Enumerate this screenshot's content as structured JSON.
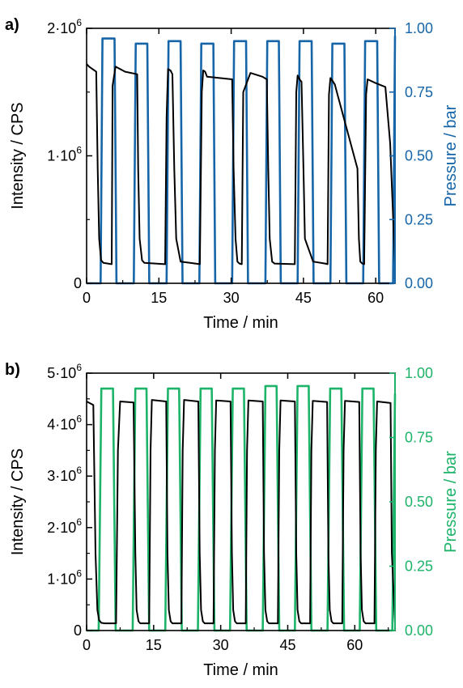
{
  "colors": {
    "intensity": "#000000",
    "pressure_a": "#1565a8",
    "pressure_b": "#1db46a",
    "axis": "#000000"
  },
  "chart_data": [
    {
      "panel_label": "a)",
      "type": "line",
      "xlabel": "Time / min",
      "ylabel_left": "Intensity / CPS",
      "ylabel_right": "Pressure / bar",
      "xlim": [
        0,
        64
      ],
      "ylim_left": [
        0,
        2000000
      ],
      "ylim_right": [
        0,
        1.0
      ],
      "x_ticks": [
        0,
        15,
        30,
        45,
        60
      ],
      "x_tick_labels": [
        "0",
        "15",
        "30",
        "45",
        "60"
      ],
      "y_left_ticks": [
        0,
        1000000,
        2000000
      ],
      "y_left_tick_labels": [
        {
          "base": "0",
          "exp": ""
        },
        {
          "base": "1·10",
          "exp": "6"
        },
        {
          "base": "2·10",
          "exp": "6"
        }
      ],
      "y_right_ticks": [
        0,
        0.25,
        0.5,
        0.75,
        1.0
      ],
      "y_right_tick_labels": [
        "0.00",
        "0.25",
        "0.50",
        "0.75",
        "1.00"
      ],
      "grid": false,
      "series": [
        {
          "axis": "left",
          "x": [
            0,
            0.5,
            2.0,
            2.3,
            2.6,
            3.0,
            3.5,
            5.2,
            5.4,
            6.0,
            8.0,
            10.5,
            10.7,
            11.0,
            11.5,
            12.0,
            16.3,
            16.6,
            16.9,
            17.4,
            17.8,
            18.2,
            18.6,
            19.5,
            21.5,
            23.5,
            23.9,
            24.2,
            24.6,
            25.0,
            30.2,
            30.5,
            30.9,
            31.3,
            31.7,
            32.2,
            32.5,
            34.0,
            36.5,
            37.4,
            37.7,
            38.0,
            38.5,
            39.0,
            43.2,
            43.5,
            43.8,
            44.2,
            44.6,
            45.0,
            45.3,
            47.0,
            49.5,
            50.0,
            50.3,
            50.6,
            51.0,
            51.5,
            56.2,
            56.5,
            56.8,
            57.2,
            57.6,
            58.0,
            58.3,
            60.0,
            62.0,
            63.0,
            64.0
          ],
          "values": [
            1720000,
            1700000,
            1660000,
            900000,
            350000,
            180000,
            160000,
            150000,
            1550000,
            1700000,
            1660000,
            1640000,
            900000,
            350000,
            180000,
            160000,
            150000,
            1300000,
            1680000,
            1670000,
            1640000,
            900000,
            350000,
            170000,
            160000,
            150000,
            1500000,
            1670000,
            1660000,
            1620000,
            1600000,
            900000,
            350000,
            170000,
            155000,
            150000,
            1500000,
            1650000,
            1620000,
            1600000,
            900000,
            350000,
            170000,
            155000,
            150000,
            1500000,
            1630000,
            1600000,
            1580000,
            900000,
            350000,
            170000,
            155000,
            150000,
            1480000,
            1610000,
            1590000,
            1560000,
            900000,
            350000,
            170000,
            155000,
            150000,
            1480000,
            1600000,
            1570000,
            1540000,
            1100000,
            145000
          ]
        },
        {
          "axis": "right",
          "x": [
            0,
            2.9,
            3.3,
            5.8,
            6.2,
            9.8,
            10.2,
            12.6,
            13.0,
            16.6,
            17.0,
            19.5,
            19.9,
            23.4,
            23.8,
            26.3,
            26.7,
            30.2,
            30.6,
            33.1,
            33.5,
            37.1,
            37.5,
            39.9,
            40.3,
            43.8,
            44.2,
            46.7,
            47.1,
            50.6,
            51.0,
            53.5,
            53.9,
            57.4,
            57.8,
            60.3,
            60.7,
            63.6,
            64.0
          ],
          "values": [
            0,
            0,
            0.96,
            0.96,
            0,
            0,
            0.94,
            0.94,
            0,
            0,
            0.95,
            0.95,
            0,
            0,
            0.94,
            0.94,
            0,
            0,
            0.95,
            0.95,
            0,
            0,
            0.95,
            0.95,
            0,
            0,
            0.95,
            0.95,
            0,
            0,
            0.94,
            0.94,
            0,
            0,
            0.95,
            0.95,
            0,
            0,
            0.97
          ]
        }
      ]
    },
    {
      "panel_label": "b)",
      "type": "line",
      "xlabel": "Time / min",
      "ylabel_left": "Intensity / CPS",
      "ylabel_right": "Pressure / bar",
      "xlim": [
        0,
        69
      ],
      "ylim_left": [
        0,
        5000000
      ],
      "ylim_right": [
        0,
        1.0
      ],
      "x_ticks": [
        0,
        15,
        30,
        45,
        60
      ],
      "x_tick_labels": [
        "0",
        "15",
        "30",
        "45",
        "60"
      ],
      "y_left_ticks": [
        0,
        1000000,
        2000000,
        3000000,
        4000000,
        5000000
      ],
      "y_left_tick_labels": [
        {
          "base": "0",
          "exp": ""
        },
        {
          "base": "1·10",
          "exp": "6"
        },
        {
          "base": "2·10",
          "exp": "6"
        },
        {
          "base": "3·10",
          "exp": "6"
        },
        {
          "base": "4·10",
          "exp": "6"
        },
        {
          "base": "5·10",
          "exp": "6"
        }
      ],
      "y_right_ticks": [
        0,
        0.25,
        0.5,
        0.75,
        1.0
      ],
      "y_right_tick_labels": [
        "0.00",
        "0.25",
        "0.50",
        "0.75",
        "1.00"
      ],
      "grid": false,
      "series": [
        {
          "axis": "left",
          "x": [
            0,
            1.5,
            2.0,
            2.4,
            2.8,
            3.3,
            4.0,
            6.6,
            7.0,
            7.5,
            10.5,
            10.9,
            11.2,
            11.6,
            12.0,
            14.0,
            14.3,
            14.6,
            17.8,
            18.1,
            18.4,
            18.8,
            19.2,
            21.2,
            21.5,
            21.8,
            25.0,
            25.3,
            25.6,
            26.0,
            26.4,
            28.4,
            28.7,
            29.0,
            32.2,
            32.5,
            32.8,
            33.2,
            33.6,
            35.6,
            35.9,
            36.2,
            39.4,
            39.7,
            40.0,
            40.4,
            40.8,
            42.8,
            43.1,
            43.4,
            46.6,
            46.9,
            47.2,
            47.6,
            48.0,
            50.0,
            50.3,
            50.6,
            53.8,
            54.1,
            54.4,
            54.8,
            55.2,
            57.2,
            57.5,
            57.8,
            61.0,
            61.3,
            61.6,
            62.0,
            62.4,
            64.4,
            64.7,
            65.0,
            68.0,
            68.3,
            69.0
          ],
          "values": [
            4450000,
            4380000,
            1500000,
            400000,
            200000,
            150000,
            140000,
            140000,
            3500000,
            4450000,
            4430000,
            1500000,
            400000,
            180000,
            140000,
            140000,
            3500000,
            4480000,
            4450000,
            1500000,
            400000,
            180000,
            140000,
            140000,
            3500000,
            4480000,
            4450000,
            1500000,
            400000,
            180000,
            140000,
            140000,
            3500000,
            4470000,
            4450000,
            1500000,
            400000,
            180000,
            140000,
            140000,
            3500000,
            4470000,
            4450000,
            1500000,
            400000,
            180000,
            140000,
            140000,
            3500000,
            4470000,
            4450000,
            1500000,
            400000,
            180000,
            140000,
            140000,
            3500000,
            4460000,
            4440000,
            1500000,
            400000,
            180000,
            140000,
            140000,
            3500000,
            4460000,
            4440000,
            1500000,
            400000,
            180000,
            140000,
            140000,
            3500000,
            4450000,
            4420000,
            1500000,
            140000
          ]
        },
        {
          "axis": "right",
          "x": [
            0,
            2.7,
            3.3,
            5.9,
            6.5,
            10.3,
            10.9,
            13.4,
            14.0,
            17.6,
            18.2,
            20.7,
            21.3,
            24.9,
            25.5,
            28.0,
            28.6,
            32.1,
            32.7,
            35.2,
            35.8,
            39.4,
            40.0,
            42.5,
            43.1,
            46.6,
            47.2,
            49.7,
            50.3,
            53.9,
            54.5,
            57.0,
            57.6,
            61.1,
            61.7,
            64.2,
            64.8,
            68.4,
            69.0
          ],
          "values": [
            0,
            0,
            0.94,
            0.94,
            0,
            0,
            0.94,
            0.94,
            0,
            0,
            0.94,
            0.94,
            0,
            0,
            0.94,
            0.94,
            0,
            0,
            0.94,
            0.94,
            0,
            0,
            0.95,
            0.95,
            0,
            0,
            0.95,
            0.95,
            0,
            0,
            0.94,
            0.94,
            0,
            0,
            0.94,
            0.94,
            0,
            0,
            0.92
          ]
        }
      ]
    }
  ]
}
